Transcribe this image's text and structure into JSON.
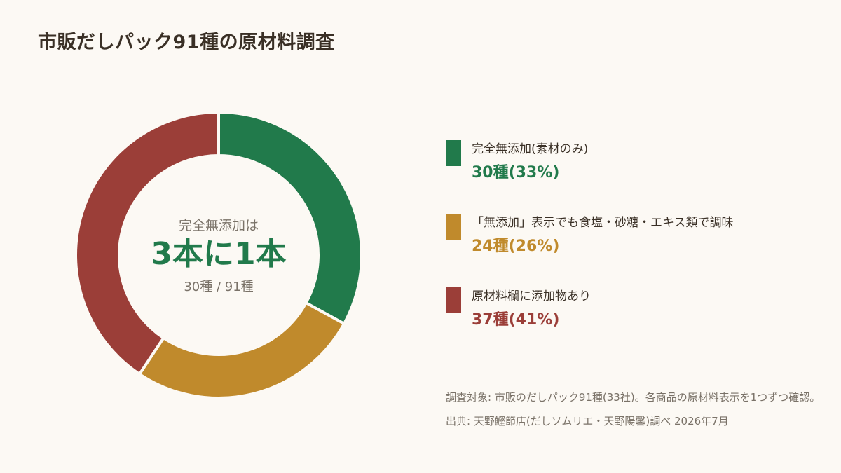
{
  "title": "市販だしパック91種の原材料調査",
  "center": {
    "top": "完全無添加は",
    "main": "3本に1本",
    "sub": "30種 / 91種"
  },
  "chart_data": {
    "type": "pie",
    "total": 91,
    "slices": [
      {
        "label": "完全無添加(素材のみ)",
        "value": 30,
        "display": "30種(33%)",
        "color": "#217a4b"
      },
      {
        "label": "「無添加」表示でも食塩・砂糖・エキス類で調味",
        "value": 24,
        "display": "24種(26%)",
        "color": "#c08a2c"
      },
      {
        "label": "原材料欄に添加物あり",
        "value": 37,
        "display": "37種(41%)",
        "color": "#9b3e38"
      }
    ]
  },
  "notes": {
    "survey": "調査対象: 市販のだしパック91種(33社)。各商品の原材料表示を1つずつ確認。",
    "source": "出典: 天野鰹節店(だしソムリエ・天野陽馨)調べ 2026年7月"
  }
}
